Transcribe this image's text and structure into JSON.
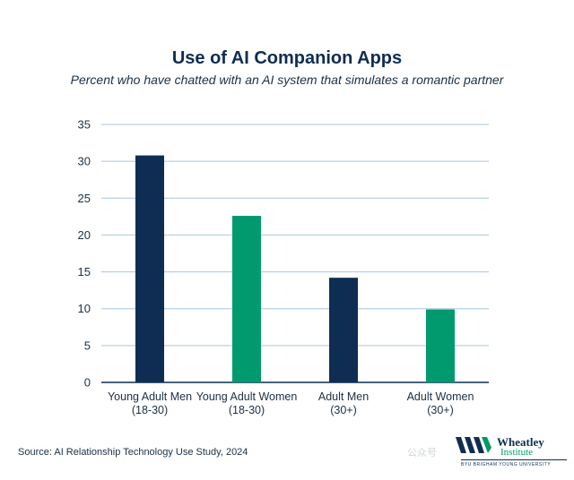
{
  "chart_data": {
    "type": "bar",
    "title": "Use of AI Companion Apps",
    "subtitle": "Percent who have chatted with an AI system that simulates a romantic partner",
    "categories": [
      [
        "Young Adult Men",
        "(18-30)"
      ],
      [
        "Young Adult Women",
        "(18-30)"
      ],
      [
        "Adult Men",
        "(30+)"
      ],
      [
        "Adult Women",
        "(30+)"
      ]
    ],
    "values": [
      30.8,
      22.6,
      14.2,
      9.9
    ],
    "bar_colors": [
      "#0f2d52",
      "#009a6e",
      "#0f2d52",
      "#009a6e"
    ],
    "ylim": [
      0,
      35
    ],
    "yticks": [
      0,
      5,
      10,
      15,
      20,
      25,
      30,
      35
    ],
    "grid": true,
    "xlabel": "",
    "ylabel": ""
  },
  "source": "Source: AI Relationship Technology Use Study, 2024",
  "watermark": "公众号",
  "logo": {
    "name_line1": "Wheatley",
    "name_line2": "Institute",
    "university": "BYU BRIGHAM YOUNG UNIVERSITY"
  },
  "colors": {
    "navy": "#0f2d52",
    "green": "#009a6e",
    "grid": "#a9c6dc"
  }
}
